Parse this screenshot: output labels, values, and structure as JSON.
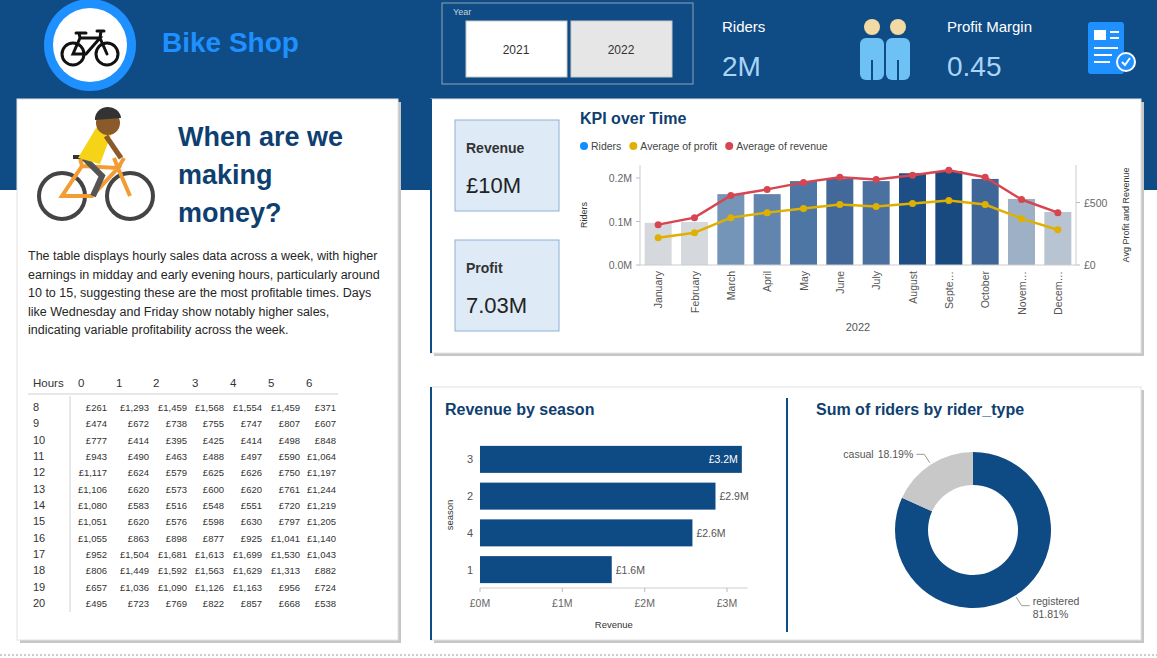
{
  "header": {
    "title": "Bike Shop",
    "slicer": {
      "title": "Year",
      "options": [
        "2021",
        "2022"
      ],
      "selected": "2022"
    },
    "cards": [
      {
        "label": "Riders",
        "value": "2M"
      },
      {
        "label": "Profit Margin",
        "value": "0.45"
      }
    ]
  },
  "story": {
    "title": [
      "When are we",
      "making",
      "money?"
    ],
    "text": "The table displays hourly sales data across a week, with higher earnings in midday and early evening hours, particularly around 10 to 15, suggesting these are the most profitable times. Days like Wednesday and Friday show notably higher sales, indicating variable profitability across the week.",
    "table": {
      "corner": "Hours",
      "columns": [
        "0",
        "1",
        "2",
        "3",
        "4",
        "5",
        "6"
      ],
      "rows": [
        [
          "8",
          "£261",
          "£1,293",
          "£1,459",
          "£1,568",
          "£1,554",
          "£1,459",
          "£371"
        ],
        [
          "9",
          "£474",
          "£672",
          "£738",
          "£755",
          "£747",
          "£807",
          "£607"
        ],
        [
          "10",
          "£777",
          "£414",
          "£395",
          "£425",
          "£414",
          "£498",
          "£848"
        ],
        [
          "11",
          "£943",
          "£490",
          "£463",
          "£488",
          "£497",
          "£590",
          "£1,064"
        ],
        [
          "12",
          "£1,117",
          "£624",
          "£579",
          "£625",
          "£626",
          "£750",
          "£1,197"
        ],
        [
          "13",
          "£1,106",
          "£620",
          "£573",
          "£600",
          "£620",
          "£761",
          "£1,244"
        ],
        [
          "14",
          "£1,080",
          "£583",
          "£516",
          "£548",
          "£551",
          "£720",
          "£1,219"
        ],
        [
          "15",
          "£1,051",
          "£620",
          "£576",
          "£598",
          "£630",
          "£797",
          "£1,205"
        ],
        [
          "16",
          "£1,055",
          "£863",
          "£898",
          "£877",
          "£925",
          "£1,041",
          "£1,140"
        ],
        [
          "17",
          "£952",
          "£1,504",
          "£1,681",
          "£1,613",
          "£1,699",
          "£1,530",
          "£1,043"
        ],
        [
          "18",
          "£806",
          "£1,449",
          "£1,592",
          "£1,563",
          "£1,629",
          "£1,313",
          "£882"
        ],
        [
          "19",
          "£657",
          "£1,036",
          "£1,090",
          "£1,126",
          "£1,163",
          "£956",
          "£724"
        ],
        [
          "20",
          "£495",
          "£723",
          "£769",
          "£822",
          "£857",
          "£668",
          "£538"
        ]
      ]
    }
  },
  "kpis": [
    {
      "label": "Revenue",
      "value": "£10M"
    },
    {
      "label": "Profit",
      "value": "7.03M"
    }
  ],
  "chart_data": [
    {
      "type": "bar",
      "title": "KPI over Time",
      "categories": [
        "January",
        "February",
        "March",
        "April",
        "May",
        "June",
        "July",
        "August",
        "Septe…",
        "October",
        "Novem…",
        "Decem…"
      ],
      "xlabel": "2022",
      "ylabel": "Riders",
      "y2label": "Avg Profit and Revenue",
      "ylim": [
        0,
        230000
      ],
      "yticks": [
        {
          "value": 0,
          "label": "0.0M"
        },
        {
          "value": 100000,
          "label": "0.1M"
        },
        {
          "value": 200000,
          "label": "0.2M"
        }
      ],
      "y2lim": [
        0,
        800
      ],
      "y2ticks": [
        {
          "value": 0,
          "label": "£0"
        },
        {
          "value": 500,
          "label": "£500"
        }
      ],
      "series": [
        {
          "name": "Riders",
          "type": "bar",
          "color": "#118dff",
          "colors": [
            "#d5d8dc",
            "#d5d8dc",
            "#7494b8",
            "#6285b0",
            "#4e76a4",
            "#42699a",
            "#4b71a0",
            "#1d4f86",
            "#184a80",
            "#3e6699",
            "#9db0c6",
            "#b8c4d2"
          ],
          "values": [
            97000,
            99000,
            163000,
            163000,
            193000,
            198000,
            193000,
            211000,
            216000,
            198000,
            152000,
            122000
          ]
        },
        {
          "name": "Average of profit",
          "type": "line",
          "axis": "y2",
          "color": "#e0b000",
          "marker": "circle",
          "values": [
            218,
            258,
            379,
            419,
            452,
            484,
            468,
            492,
            516,
            484,
            371,
            282
          ]
        },
        {
          "name": "Average of revenue",
          "type": "line",
          "axis": "y2",
          "color": "#d64550",
          "marker": "circle",
          "values": [
            323,
            379,
            556,
            605,
            661,
            702,
            685,
            718,
            758,
            702,
            524,
            419
          ]
        }
      ]
    },
    {
      "type": "bar",
      "orientation": "horizontal",
      "title": "Revenue by season",
      "categories": [
        "3",
        "2",
        "4",
        "1"
      ],
      "values": [
        3180000,
        2860000,
        2580000,
        1600000
      ],
      "value_labels": [
        "£3.2M",
        "£2.9M",
        "£2.6M",
        "£1.6M"
      ],
      "data_labels": true,
      "color": "#0e4a84",
      "xlabel": "Revenue",
      "ylabel": "season",
      "xlim": [
        0,
        3250000
      ],
      "xticks": [
        {
          "value": 0,
          "label": "£0M"
        },
        {
          "value": 1000000,
          "label": "£1M"
        },
        {
          "value": 2000000,
          "label": "£2M"
        },
        {
          "value": 3000000,
          "label": "£3M"
        }
      ]
    },
    {
      "type": "donut",
      "title": "Sum of riders by rider_type",
      "categories": [
        "registered",
        "casual"
      ],
      "values": [
        81.81,
        18.19
      ],
      "value_labels": [
        "81.81%",
        "18.19%"
      ],
      "colors": [
        "#0e4a84",
        "#c8c8c8"
      ],
      "data_labels": true
    }
  ]
}
